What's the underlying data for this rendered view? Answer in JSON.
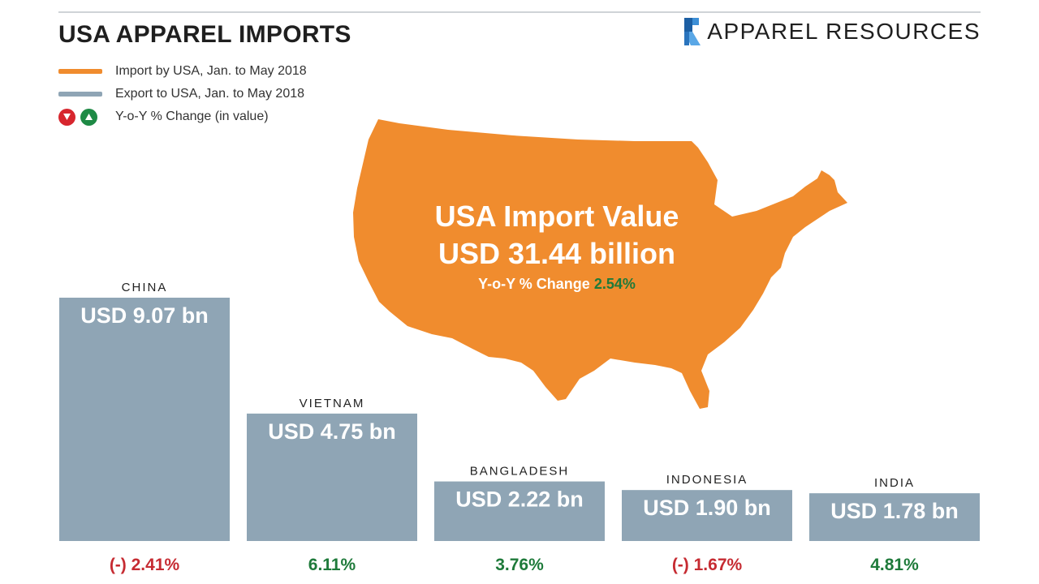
{
  "header": {
    "title": "USA APPAREL IMPORTS",
    "brand": "APPAREL RESOURCES"
  },
  "legend": {
    "import_label": "Import by USA, Jan. to May 2018",
    "export_label": "Export to USA, Jan. to May 2018",
    "change_label": "Y-o-Y % Change (in value)"
  },
  "colors": {
    "import": "#f08c2e",
    "export": "#8fa5b5",
    "down": "#d7262e",
    "up": "#1e8a45",
    "neg_text": "#c62b32",
    "pos_text": "#1e7a3a"
  },
  "map": {
    "title_line1": "USA Import Value",
    "title_line2": "USD 31.44 billion",
    "change_prefix": "Y-o-Y % Change",
    "change_value": "2.54%"
  },
  "chart_data": {
    "type": "bar",
    "categories": [
      "CHINA",
      "VIETNAM",
      "BANGLADESH",
      "INDONESIA",
      "INDIA"
    ],
    "values": [
      9.07,
      4.75,
      2.22,
      1.9,
      1.78
    ],
    "value_labels": [
      "USD 9.07 bn",
      "USD 4.75 bn",
      "USD 2.22 bn",
      "USD 1.90 bn",
      "USD 1.78 bn"
    ],
    "change_labels": [
      "(-) 2.41%",
      "6.11%",
      "3.76%",
      "(-) 1.67%",
      "4.81%"
    ],
    "changes": [
      -2.41,
      6.11,
      3.76,
      -1.67,
      4.81
    ]
  }
}
